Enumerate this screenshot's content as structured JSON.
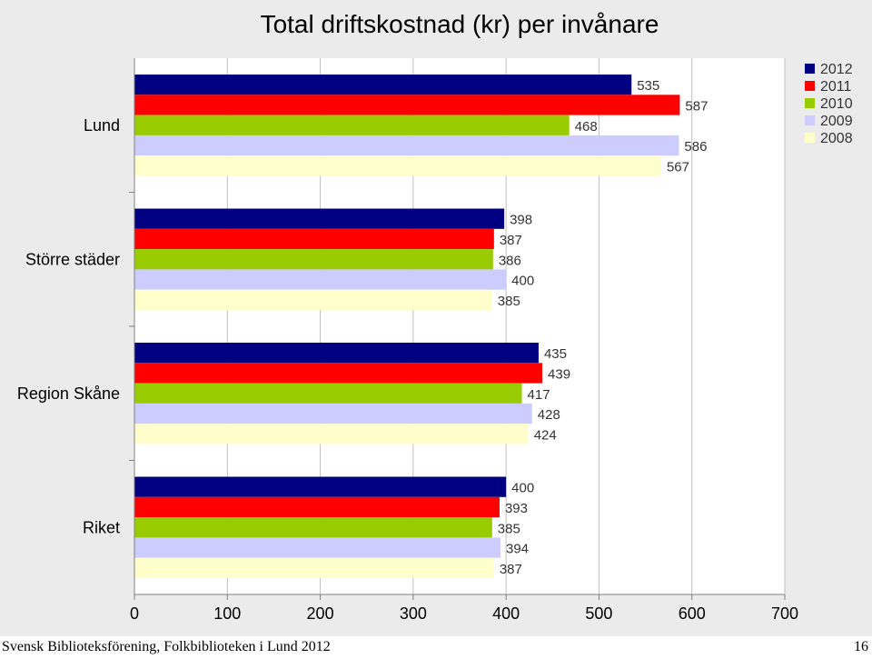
{
  "footer": {
    "text": "Svensk Biblioteksförening, Folkbiblioteken i Lund 2012",
    "page_number": "16"
  },
  "chart_data": {
    "type": "bar",
    "orientation": "horizontal",
    "title": "Total driftskostnad (kr) per invånare",
    "categories": [
      "Lund",
      "Större städer",
      "Region Skåne",
      "Riket"
    ],
    "series": [
      {
        "name": "2012",
        "color": "#000080",
        "values": [
          535,
          398,
          435,
          400
        ]
      },
      {
        "name": "2011",
        "color": "#ff0000",
        "values": [
          587,
          387,
          439,
          393
        ]
      },
      {
        "name": "2010",
        "color": "#99cc00",
        "values": [
          468,
          386,
          417,
          385
        ]
      },
      {
        "name": "2009",
        "color": "#ccccff",
        "values": [
          586,
          400,
          428,
          394
        ]
      },
      {
        "name": "2008",
        "color": "#ffffcc",
        "values": [
          567,
          385,
          424,
          387
        ]
      }
    ],
    "xlim": [
      0,
      700
    ],
    "xticks": [
      "0",
      "100",
      "200",
      "300",
      "400",
      "500",
      "600",
      "700"
    ],
    "grid": true,
    "legend": "top-right",
    "xlabel": "",
    "ylabel": ""
  }
}
